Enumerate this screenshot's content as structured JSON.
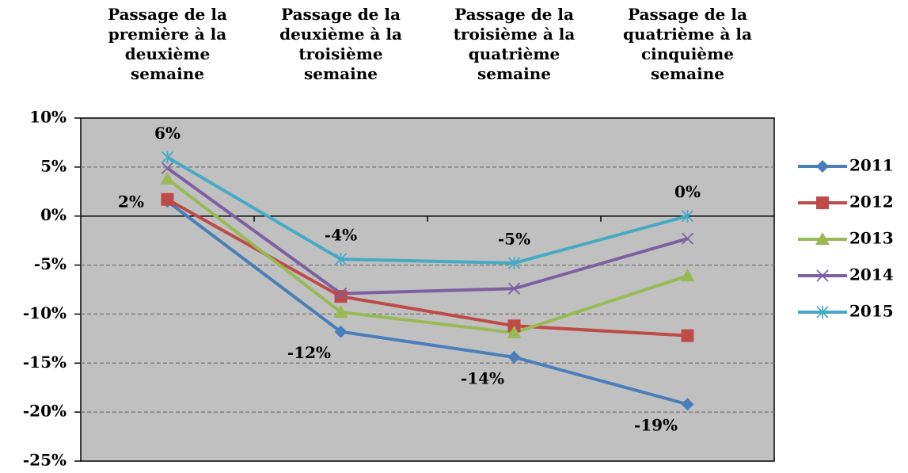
{
  "chart_data": {
    "type": "line",
    "categories": [
      "Passage de la première à la deuxième semaine",
      "Passage de la deuxième à la troisième semaine",
      "Passage de la troisième à la quatrième semaine",
      "Passage de la quatrième à la cinquième semaine"
    ],
    "series": [
      {
        "name": "2011",
        "color": "#4a7ebb",
        "marker": "diamond",
        "values": [
          1.5,
          -11.8,
          -14.4,
          -19.2
        ],
        "value_labels": [
          "2%",
          "-12%",
          "-14%",
          "-19%"
        ]
      },
      {
        "name": "2012",
        "color": "#be4b48",
        "marker": "square",
        "values": [
          1.7,
          -8.2,
          -11.2,
          -12.2
        ]
      },
      {
        "name": "2013",
        "color": "#98b954",
        "marker": "triangle",
        "values": [
          3.8,
          -9.8,
          -11.9,
          -6.1
        ]
      },
      {
        "name": "2014",
        "color": "#7d60a0",
        "marker": "x",
        "values": [
          4.9,
          -7.9,
          -7.4,
          -2.3
        ]
      },
      {
        "name": "2015",
        "color": "#46aac5",
        "marker": "asterisk",
        "values": [
          6,
          -4.4,
          -4.8,
          0
        ],
        "value_labels": [
          "6%",
          "-4%",
          "-5%",
          "0%"
        ]
      }
    ],
    "ylim": [
      -25,
      10
    ],
    "yticks": [
      {
        "value": -25,
        "label": "-25%"
      },
      {
        "value": -20,
        "label": "-20%"
      },
      {
        "value": -15,
        "label": "-15%"
      },
      {
        "value": -10,
        "label": "-10%"
      },
      {
        "value": -5,
        "label": "-5%"
      },
      {
        "value": 0,
        "label": "0%"
      },
      {
        "value": 5,
        "label": "5%"
      },
      {
        "value": 10,
        "label": "10%"
      }
    ],
    "grid": true,
    "legend": "right",
    "background": "#c0c0c0"
  }
}
